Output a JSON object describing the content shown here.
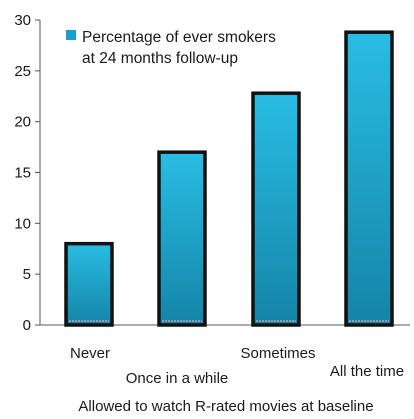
{
  "chart_data": {
    "type": "bar",
    "categories": [
      "Never",
      "Once in a while",
      "Sometimes",
      "All the time"
    ],
    "series": [
      {
        "name": "Percentage of ever smokers at 24 months follow-up",
        "values": [
          8,
          17,
          22.8,
          28.8
        ]
      }
    ],
    "legend_lines": [
      "Percentage of ever smokers",
      "at 24 months follow-up"
    ],
    "xlabel": "Allowed to watch R-rated movies at baseline",
    "ylabel": "",
    "ylim": [
      0,
      30
    ],
    "yticks": [
      "0",
      "5",
      "10",
      "15",
      "20",
      "25",
      "30"
    ],
    "ytick_values": [
      0,
      5,
      10,
      15,
      20,
      25,
      30
    ],
    "grid": false,
    "legend_position": "top-left",
    "colors": {
      "bar_top": "#29bde3",
      "bar_bottom": "#1484a8",
      "bar_outline": "#111111",
      "bar_base": "#c8a0b0",
      "legend_swatch": "#1a9ecf",
      "axis": "#555555"
    }
  }
}
